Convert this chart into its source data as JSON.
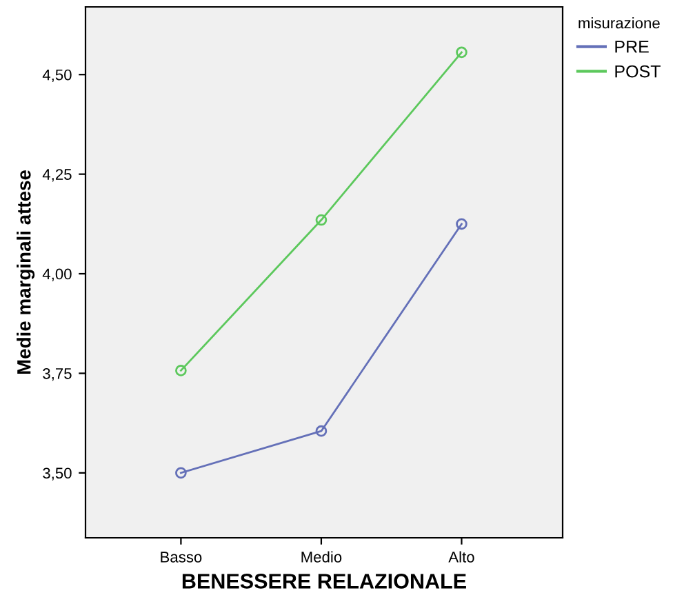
{
  "chart_data": {
    "type": "line",
    "xlabel": "BENESSERE RELAZIONALE",
    "ylabel": "Medie marginali attese",
    "legend_title": "misurazione",
    "categories": [
      "Basso",
      "Medio",
      "Alto"
    ],
    "series": [
      {
        "name": "PRE",
        "color": "#6470b8",
        "values": [
          3.5,
          3.605,
          4.125
        ]
      },
      {
        "name": "POST",
        "color": "#5cc85c",
        "values": [
          3.757,
          4.135,
          4.556
        ]
      }
    ],
    "ylim": [
      3.337,
      4.67
    ],
    "yticks": [
      {
        "value": 3.5,
        "label": "3,50"
      },
      {
        "value": 3.75,
        "label": "3,75"
      },
      {
        "value": 4.0,
        "label": "4,00"
      },
      {
        "value": 4.25,
        "label": "4,25"
      },
      {
        "value": 4.5,
        "label": "4,50"
      }
    ],
    "marker": "circle",
    "line_style": "solid",
    "grid": false,
    "legend": "right"
  }
}
